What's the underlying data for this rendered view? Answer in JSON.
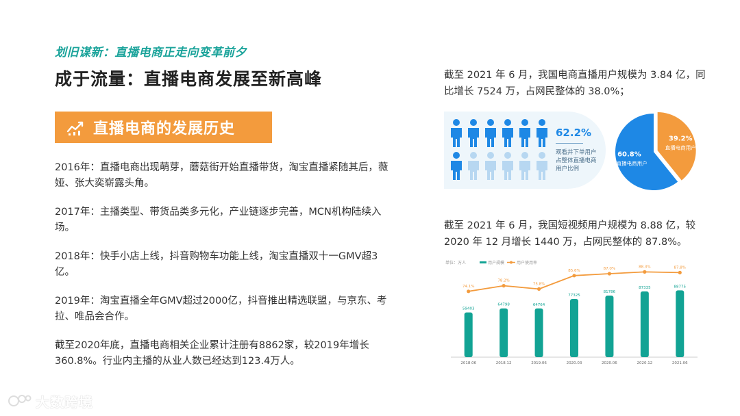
{
  "header": {
    "subtitle": "划旧谋新：直播电商正走向变革前夕",
    "title": "成于流量：直播电商发展至新高峰"
  },
  "banner": {
    "icon": "trend-chart-icon",
    "label": "直播电商的发展历史"
  },
  "history": [
    "2016年：直播电商出现萌芽，蘑菇街开始直播带货，淘宝直播紧随其后，薇娅、张大奕崭露头角。",
    "2017年：主播类型、带货品类多元化，产业链逐步完善，MCN机构陆续入场。",
    "2018年：快手小店上线，抖音购物车功能上线，淘宝直播双十一GMV超3亿。",
    "2019年：淘宝直播全年GMV超过2000亿，抖音推出精选联盟，与京东、考拉、唯品会合作。",
    "截至2020年底，直播电商相关企业累计注册有8862家，较2019年增长360.8%。行业内主播的从业人数已经达到123.4万人。"
  ],
  "stat_live": "截至 2021 年 6 月，我国电商直播用户规模为 3.84 亿，同比增长 7524 万，占网民整体的 38.0%；",
  "people": {
    "percent": "62.2%",
    "desc": "观看并下单用户占整体直播电商用户比例",
    "filled_fraction": 0.622,
    "colors": {
      "filled": "#1e88e5",
      "empty": "#b7d7f1"
    }
  },
  "stat_video": "截至 2021 年 6 月，我国短视频用户规模为 8.88 亿，较 2020 年 12 月增长 1440 万，占网民整体的 87.8%。",
  "brand": "大数跨境",
  "chart_data": [
    {
      "type": "pie",
      "slices": [
        {
          "label": "直播电商用户",
          "value": 39.2,
          "display": "39.2%",
          "color": "#f39b3d"
        },
        {
          "label": "非直播电商用户",
          "value": 60.8,
          "display": "60.8%",
          "color": "#1e88e5"
        }
      ]
    },
    {
      "type": "bar",
      "unit_label": "单位：万人",
      "legend": "top-left",
      "categories": [
        "2018.06",
        "2018.12",
        "2019.06",
        "2020.03",
        "2020.06",
        "2020.12",
        "2021.06"
      ],
      "series": [
        {
          "name": "用户规模",
          "type": "bar",
          "color": "#12a394",
          "values": [
            59403,
            64798,
            64764,
            77325,
            81786,
            87335,
            88775
          ],
          "labels": [
            "59403",
            "64798",
            "64764",
            "77325",
            "81786",
            "87335",
            "88775"
          ]
        },
        {
          "name": "用户使用率",
          "type": "line",
          "color": "#f39b3d",
          "values": [
            74.1,
            78.2,
            75.8,
            85.6,
            87.0,
            88.3,
            87.8
          ],
          "labels": [
            "74.1%",
            "78.2%",
            "75.8%",
            "85.6%",
            "87.0%",
            "88.3%",
            "87.8%"
          ]
        }
      ]
    }
  ]
}
